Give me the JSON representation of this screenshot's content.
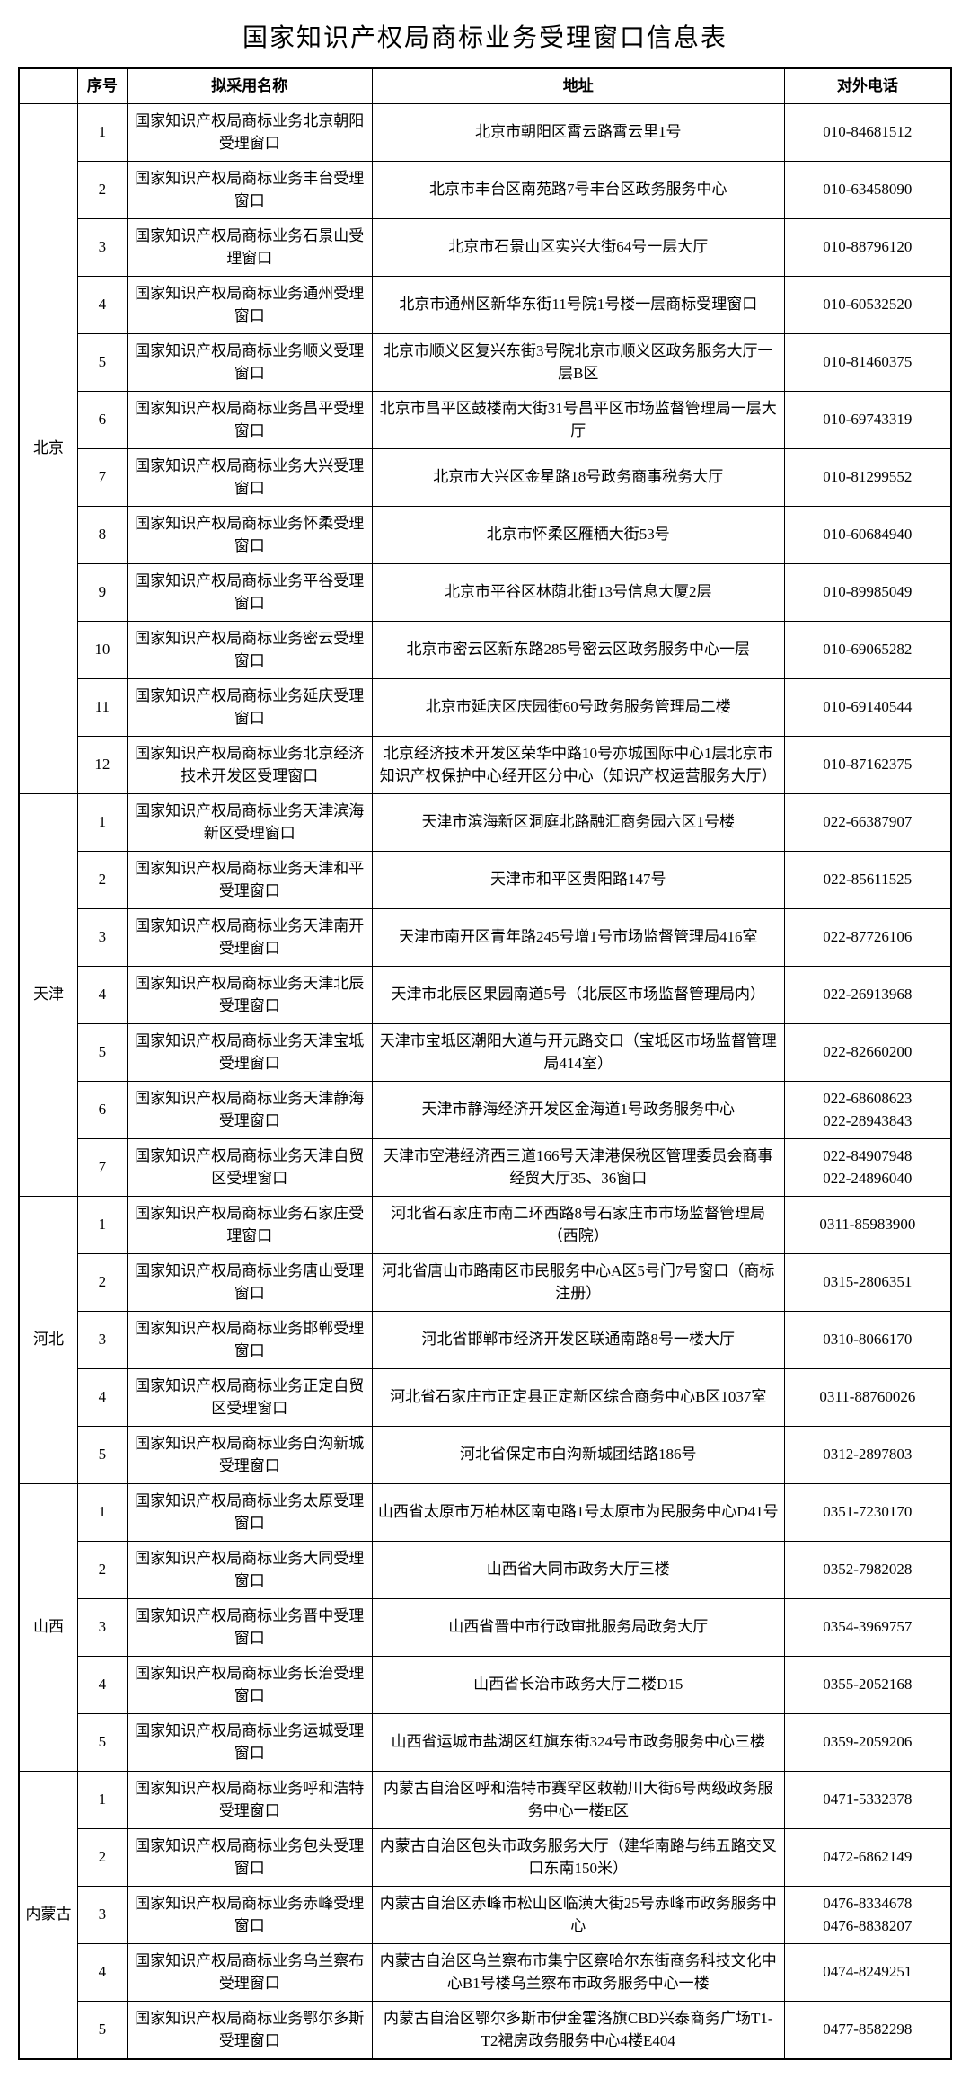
{
  "title": "国家知识产权局商标业务受理窗口信息表",
  "headers": {
    "region": "",
    "num": "序号",
    "name": "拟采用名称",
    "addr": "地址",
    "phone": "对外电话"
  },
  "regions": [
    {
      "name": "北京",
      "rows": [
        {
          "num": "1",
          "name": "国家知识产权局商标业务北京朝阳受理窗口",
          "addr": "北京市朝阳区霄云路霄云里1号",
          "phone": "010-84681512"
        },
        {
          "num": "2",
          "name": "国家知识产权局商标业务丰台受理窗口",
          "addr": "北京市丰台区南苑路7号丰台区政务服务中心",
          "phone": "010-63458090"
        },
        {
          "num": "3",
          "name": "国家知识产权局商标业务石景山受理窗口",
          "addr": "北京市石景山区实兴大街64号一层大厅",
          "phone": "010-88796120"
        },
        {
          "num": "4",
          "name": "国家知识产权局商标业务通州受理窗口",
          "addr": "北京市通州区新华东街11号院1号楼一层商标受理窗口",
          "phone": "010-60532520"
        },
        {
          "num": "5",
          "name": "国家知识产权局商标业务顺义受理窗口",
          "addr": "北京市顺义区复兴东街3号院北京市顺义区政务服务大厅一层B区",
          "phone": "010-81460375"
        },
        {
          "num": "6",
          "name": "国家知识产权局商标业务昌平受理窗口",
          "addr": "北京市昌平区鼓楼南大街31号昌平区市场监督管理局一层大厅",
          "phone": "010-69743319"
        },
        {
          "num": "7",
          "name": "国家知识产权局商标业务大兴受理窗口",
          "addr": "北京市大兴区金星路18号政务商事税务大厅",
          "phone": "010-81299552"
        },
        {
          "num": "8",
          "name": "国家知识产权局商标业务怀柔受理窗口",
          "addr": "北京市怀柔区雁栖大街53号",
          "phone": "010-60684940"
        },
        {
          "num": "9",
          "name": "国家知识产权局商标业务平谷受理窗口",
          "addr": "北京市平谷区林荫北街13号信息大厦2层",
          "phone": "010-89985049"
        },
        {
          "num": "10",
          "name": "国家知识产权局商标业务密云受理窗口",
          "addr": "北京市密云区新东路285号密云区政务服务中心一层",
          "phone": "010-69065282"
        },
        {
          "num": "11",
          "name": "国家知识产权局商标业务延庆受理窗口",
          "addr": "北京市延庆区庆园街60号政务服务管理局二楼",
          "phone": "010-69140544"
        },
        {
          "num": "12",
          "name": "国家知识产权局商标业务北京经济技术开发区受理窗口",
          "addr": "北京经济技术开发区荣华中路10号亦城国际中心1层北京市知识产权保护中心经开区分中心（知识产权运营服务大厅）",
          "phone": "010-87162375"
        }
      ]
    },
    {
      "name": "天津",
      "rows": [
        {
          "num": "1",
          "name": "国家知识产权局商标业务天津滨海新区受理窗口",
          "addr": "天津市滨海新区洞庭北路融汇商务园六区1号楼",
          "phone": "022-66387907"
        },
        {
          "num": "2",
          "name": "国家知识产权局商标业务天津和平受理窗口",
          "addr": "天津市和平区贵阳路147号",
          "phone": "022-85611525"
        },
        {
          "num": "3",
          "name": "国家知识产权局商标业务天津南开受理窗口",
          "addr": "天津市南开区青年路245号增1号市场监督管理局416室",
          "phone": "022-87726106"
        },
        {
          "num": "4",
          "name": "国家知识产权局商标业务天津北辰受理窗口",
          "addr": "天津市北辰区果园南道5号（北辰区市场监督管理局内）",
          "phone": "022-26913968"
        },
        {
          "num": "5",
          "name": "国家知识产权局商标业务天津宝坻受理窗口",
          "addr": "天津市宝坻区潮阳大道与开元路交口（宝坻区市场监督管理局414室）",
          "phone": "022-82660200"
        },
        {
          "num": "6",
          "name": "国家知识产权局商标业务天津静海受理窗口",
          "addr": "天津市静海经济开发区金海道1号政务服务中心",
          "phone": "022-68608623\n022-28943843"
        },
        {
          "num": "7",
          "name": "国家知识产权局商标业务天津自贸区受理窗口",
          "addr": "天津市空港经济西三道166号天津港保税区管理委员会商事经贸大厅35、36窗口",
          "phone": "022-84907948\n022-24896040"
        }
      ]
    },
    {
      "name": "河北",
      "rows": [
        {
          "num": "1",
          "name": "国家知识产权局商标业务石家庄受理窗口",
          "addr": "河北省石家庄市南二环西路8号石家庄市市场监督管理局（西院）",
          "phone": "0311-85983900"
        },
        {
          "num": "2",
          "name": "国家知识产权局商标业务唐山受理窗口",
          "addr": "河北省唐山市路南区市民服务中心A区5号门7号窗口（商标注册）",
          "phone": "0315-2806351"
        },
        {
          "num": "3",
          "name": "国家知识产权局商标业务邯郸受理窗口",
          "addr": "河北省邯郸市经济开发区联通南路8号一楼大厅",
          "phone": "0310-8066170"
        },
        {
          "num": "4",
          "name": "国家知识产权局商标业务正定自贸区受理窗口",
          "addr": "河北省石家庄市正定县正定新区综合商务中心B区1037室",
          "phone": "0311-88760026"
        },
        {
          "num": "5",
          "name": "国家知识产权局商标业务白沟新城受理窗口",
          "addr": "河北省保定市白沟新城团结路186号",
          "phone": "0312-2897803"
        }
      ]
    },
    {
      "name": "山西",
      "rows": [
        {
          "num": "1",
          "name": "国家知识产权局商标业务太原受理窗口",
          "addr": "山西省太原市万柏林区南屯路1号太原市为民服务中心D41号",
          "phone": "0351-7230170"
        },
        {
          "num": "2",
          "name": "国家知识产权局商标业务大同受理窗口",
          "addr": "山西省大同市政务大厅三楼",
          "phone": "0352-7982028"
        },
        {
          "num": "3",
          "name": "国家知识产权局商标业务晋中受理窗口",
          "addr": "山西省晋中市行政审批服务局政务大厅",
          "phone": "0354-3969757"
        },
        {
          "num": "4",
          "name": "国家知识产权局商标业务长治受理窗口",
          "addr": "山西省长治市政务大厅二楼D15",
          "phone": "0355-2052168"
        },
        {
          "num": "5",
          "name": "国家知识产权局商标业务运城受理窗口",
          "addr": "山西省运城市盐湖区红旗东街324号市政务服务中心三楼",
          "phone": "0359-2059206"
        }
      ]
    },
    {
      "name": "内蒙古",
      "rows": [
        {
          "num": "1",
          "name": "国家知识产权局商标业务呼和浩特受理窗口",
          "addr": "内蒙古自治区呼和浩特市赛罕区敕勒川大街6号两级政务服务中心一楼E区",
          "phone": "0471-5332378"
        },
        {
          "num": "2",
          "name": "国家知识产权局商标业务包头受理窗口",
          "addr": "内蒙古自治区包头市政务服务大厅（建华南路与纬五路交叉口东南150米）",
          "phone": "0472-6862149"
        },
        {
          "num": "3",
          "name": "国家知识产权局商标业务赤峰受理窗口",
          "addr": "内蒙古自治区赤峰市松山区临潢大街25号赤峰市政务服务中心",
          "phone": "0476-8334678\n0476-8838207"
        },
        {
          "num": "4",
          "name": "国家知识产权局商标业务乌兰察布受理窗口",
          "addr": "内蒙古自治区乌兰察布市集宁区察哈尔东街商务科技文化中心B1号楼乌兰察布市政务服务中心一楼",
          "phone": "0474-8249251"
        },
        {
          "num": "5",
          "name": "国家知识产权局商标业务鄂尔多斯受理窗口",
          "addr": "内蒙古自治区鄂尔多斯市伊金霍洛旗CBD兴泰商务广场T1-T2裙房政务服务中心4楼E404",
          "phone": "0477-8582298"
        }
      ]
    }
  ]
}
